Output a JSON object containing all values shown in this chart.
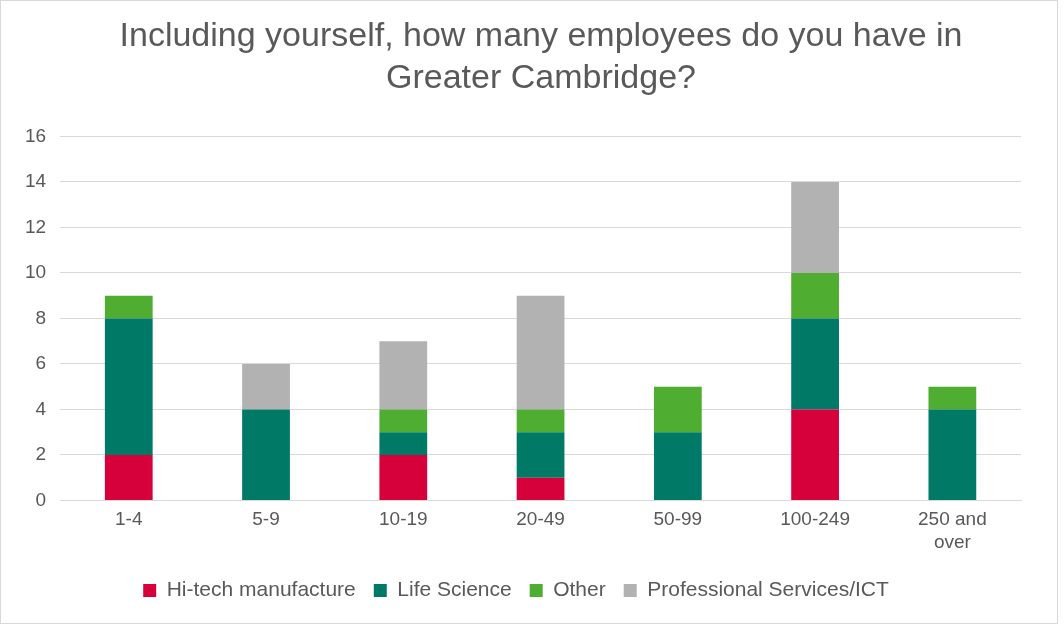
{
  "chart_data": {
    "type": "bar",
    "title": "Including yourself, how many employees do you have in Greater Cambridge?",
    "categories": [
      "1-4",
      "5-9",
      "10-19",
      "20-49",
      "50-99",
      "100-249",
      "250 and over"
    ],
    "series": [
      {
        "name": "Hi-tech manufacture",
        "color": "#d6003b",
        "values": [
          2,
          0,
          2,
          1,
          0,
          4,
          0
        ]
      },
      {
        "name": "Life Science",
        "color": "#007a67",
        "values": [
          6,
          4,
          1,
          2,
          3,
          4,
          4
        ]
      },
      {
        "name": "Other",
        "color": "#4fad32",
        "values": [
          1,
          0,
          1,
          1,
          2,
          2,
          1
        ]
      },
      {
        "name": "Professional Services/ICT",
        "color": "#b2b2b2",
        "values": [
          0,
          2,
          3,
          5,
          0,
          4,
          0
        ]
      }
    ],
    "stacked": true,
    "ylim": [
      0,
      16
    ],
    "yticks": [
      0,
      2,
      4,
      6,
      8,
      10,
      12,
      14,
      16
    ],
    "grid": "y",
    "legend": "bottom"
  }
}
